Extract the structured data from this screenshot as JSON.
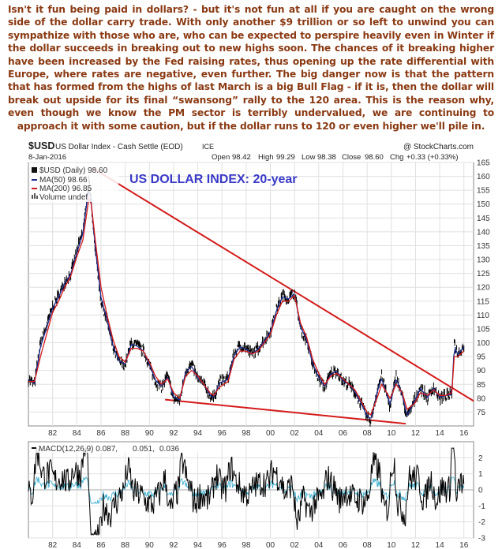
{
  "commentary": "Isn't it fun being paid in dollars? - but it's not fun at all if you are caught on the wrong side of the dollar carry trade. With only another $9 trillion or so left to unwind you can sympathize with those who are, who can be expected to perspire heavily even in Winter if the dollar succeeds in breaking out to new highs soon. The chances of it breaking higher have been increased by the Fed raising rates, thus opening up the rate differential with Europe, where rates are negative, even further. The big danger now is that the pattern that has formed from the highs of last March is a big Bull Flag - if it is, then the dollar will break out upside for its final “swansong” rally to the 120 area. This is the reason why, even though we know the PM sector is terribly undervalued, we are continuing to approach it with some caution, but if the dollar runs to 120 or even higher we'll pile in.",
  "chart_header": {
    "symbol": "$USD",
    "name": "US Dollar Index - Cash Settle (EOD)",
    "exchange": "ICE",
    "brand": "@ StockCharts.com",
    "date": "8-Jan-2016",
    "open_label": "Open",
    "open": "98.42",
    "high_label": "High",
    "high": "99.29",
    "low_label": "Low",
    "low": "98.38",
    "close_label": "Close",
    "close": "98.60",
    "chg_label": "Chg",
    "chg": "+0.33 (+0.33%)"
  },
  "colors": {
    "price": "#000000",
    "ma50": "#1a2a8a",
    "ma200": "#d41a1a",
    "trendline": "#d41a1a",
    "annotation": "#3a3ac8",
    "macd": "#000000",
    "signal": "#d41a1a",
    "histogram": "#33aacc",
    "chg_positive": "#0a8a0a"
  },
  "chart_data": [
    {
      "type": "line",
      "title": "US DOLLAR INDEX: 20-year",
      "legend": [
        {
          "label": "$USD (Daily) 98.60"
        },
        {
          "label": "MA(50) 98.66"
        },
        {
          "label": "MA(200) 96.85"
        },
        {
          "label": "Volume undef"
        }
      ],
      "legend_position": "top-left",
      "grid": true,
      "ylim": [
        70,
        165
      ],
      "y_ticks": [
        "75",
        "80",
        "85",
        "90",
        "95",
        "100",
        "105",
        "110",
        "115",
        "120",
        "125",
        "130",
        "135",
        "140",
        "145",
        "150",
        "155",
        "160",
        "165"
      ],
      "x_ticks": [
        "82",
        "84",
        "86",
        "88",
        "90",
        "92",
        "94",
        "96",
        "98",
        "00",
        "02",
        "04",
        "06",
        "08",
        "10",
        "12",
        "14",
        "16"
      ],
      "x": [
        1980.0,
        1980.5,
        1981.0,
        1981.5,
        1982.0,
        1982.5,
        1983.0,
        1983.5,
        1984.0,
        1984.5,
        1985.0,
        1985.2,
        1985.5,
        1986.0,
        1986.5,
        1987.0,
        1987.5,
        1988.0,
        1988.5,
        1989.0,
        1989.5,
        1990.0,
        1990.5,
        1991.0,
        1991.5,
        1992.0,
        1992.5,
        1993.0,
        1993.5,
        1994.0,
        1994.5,
        1995.0,
        1995.3,
        1995.8,
        1996.5,
        1997.0,
        1997.5,
        1998.0,
        1998.5,
        1999.0,
        1999.5,
        2000.0,
        2000.5,
        2001.0,
        2001.5,
        2002.0,
        2002.5,
        2003.0,
        2003.5,
        2004.0,
        2004.5,
        2005.0,
        2005.5,
        2006.0,
        2006.5,
        2007.0,
        2007.5,
        2008.0,
        2008.3,
        2008.9,
        2009.2,
        2009.9,
        2010.4,
        2010.9,
        2011.3,
        2011.9,
        2012.4,
        2013.0,
        2013.5,
        2014.0,
        2014.5,
        2015.0,
        2015.2,
        2015.5,
        2016.0
      ],
      "series": [
        {
          "name": "$USD (Daily) 98.60",
          "values": [
            87,
            85,
            100,
            106,
            113,
            117,
            122,
            125,
            133,
            140,
            158,
            150,
            135,
            115,
            108,
            98,
            93,
            92,
            100,
            99,
            97,
            92,
            86,
            84,
            88,
            80,
            79,
            90,
            92,
            87,
            85,
            81,
            80,
            86,
            87,
            96,
            99,
            98,
            96,
            98,
            101,
            104,
            112,
            117,
            116,
            118,
            105,
            101,
            92,
            87,
            84,
            89,
            90,
            86,
            85,
            82,
            78,
            73,
            72,
            84,
            88,
            77,
            88,
            81,
            73,
            79,
            84,
            80,
            84,
            80,
            81,
            81,
            100,
            96,
            99
          ]
        },
        {
          "name": "MA(200) 96.85",
          "values": [
            86,
            86,
            95,
            103,
            111,
            115,
            120,
            124,
            131,
            137,
            152,
            150,
            138,
            120,
            110,
            101,
            95,
            93,
            98,
            98,
            97,
            93,
            88,
            85,
            87,
            82,
            80,
            88,
            90,
            88,
            85,
            82,
            81,
            84,
            86,
            94,
            97,
            97,
            96,
            97,
            100,
            103,
            110,
            115,
            115,
            117,
            107,
            102,
            94,
            89,
            85,
            88,
            89,
            87,
            85,
            83,
            79,
            75,
            74,
            81,
            85,
            80,
            85,
            82,
            76,
            78,
            82,
            81,
            83,
            81,
            81,
            82,
            95,
            95,
            97
          ]
        }
      ]
    },
    {
      "type": "line",
      "title": "",
      "legend": [
        {
          "label": "MACD(12,26,9) 0.087,"
        },
        {
          "label": "0.051,"
        },
        {
          "label": "0.036"
        }
      ],
      "ylim": [
        -3,
        3
      ],
      "y_ticks": [
        "2",
        "1",
        "0",
        "-1",
        "-2",
        "-3"
      ],
      "x_ticks": [
        "82",
        "84",
        "86",
        "88",
        "90",
        "92",
        "94",
        "96",
        "98",
        "00",
        "02",
        "04",
        "06",
        "08",
        "10",
        "12",
        "14",
        "16"
      ]
    }
  ]
}
